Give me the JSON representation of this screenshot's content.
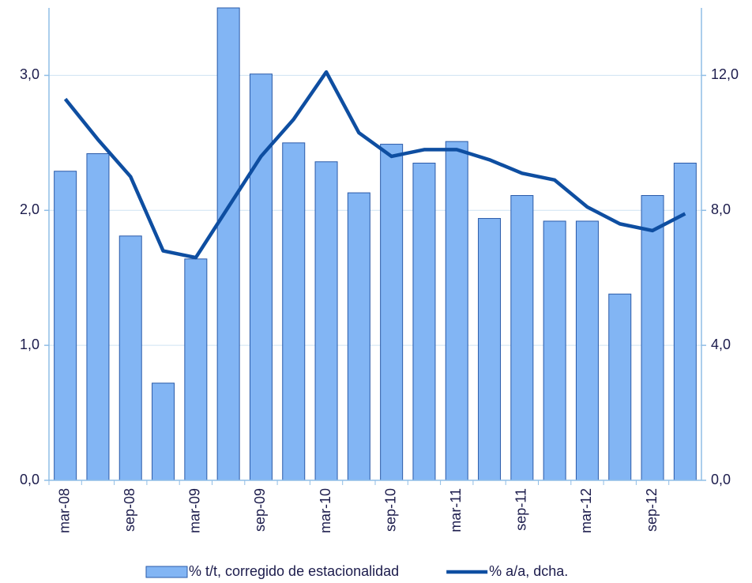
{
  "chart_data": {
    "type": "bar-line",
    "categories": [
      "mar-08",
      null,
      "sep-08",
      null,
      "mar-09",
      null,
      "sep-09",
      null,
      "mar-10",
      null,
      "sep-10",
      null,
      "mar-11",
      null,
      "sep-11",
      null,
      "mar-12",
      null,
      "sep-12",
      null
    ],
    "series": [
      {
        "name": "% t/t, corregido de estacionalidad",
        "type": "bar",
        "color": "#82b5f4",
        "axis": "y",
        "values": [
          2.29,
          2.42,
          1.81,
          0.72,
          1.64,
          3.5,
          3.01,
          2.5,
          2.36,
          2.13,
          2.49,
          2.35,
          2.51,
          1.94,
          2.11,
          1.92,
          1.92,
          1.38,
          2.11,
          2.35
        ]
      },
      {
        "name": "% a/a, dcha.",
        "type": "line",
        "color": "#0e4ea1",
        "axis": "y2",
        "values": [
          11.3,
          10.1,
          9.0,
          6.8,
          6.6,
          8.1,
          9.6,
          10.7,
          12.1,
          10.3,
          9.6,
          9.8,
          9.8,
          9.5,
          9.1,
          8.9,
          8.1,
          7.6,
          7.4,
          7.9
        ]
      }
    ],
    "ylim": [
      0,
      3.5
    ],
    "yticks": [
      {
        "value": 0,
        "label": "0,0"
      },
      {
        "value": 1,
        "label": "1,0"
      },
      {
        "value": 2,
        "label": "2,0"
      },
      {
        "value": 3,
        "label": "3,0"
      }
    ],
    "y2lim": [
      0,
      14
    ],
    "y2ticks": [
      {
        "value": 0,
        "label": "0,0"
      },
      {
        "value": 4,
        "label": "4,0"
      },
      {
        "value": 8,
        "label": "8,0"
      },
      {
        "value": 12,
        "label": "12,0"
      }
    ],
    "grid": true,
    "legend": "bottom"
  }
}
